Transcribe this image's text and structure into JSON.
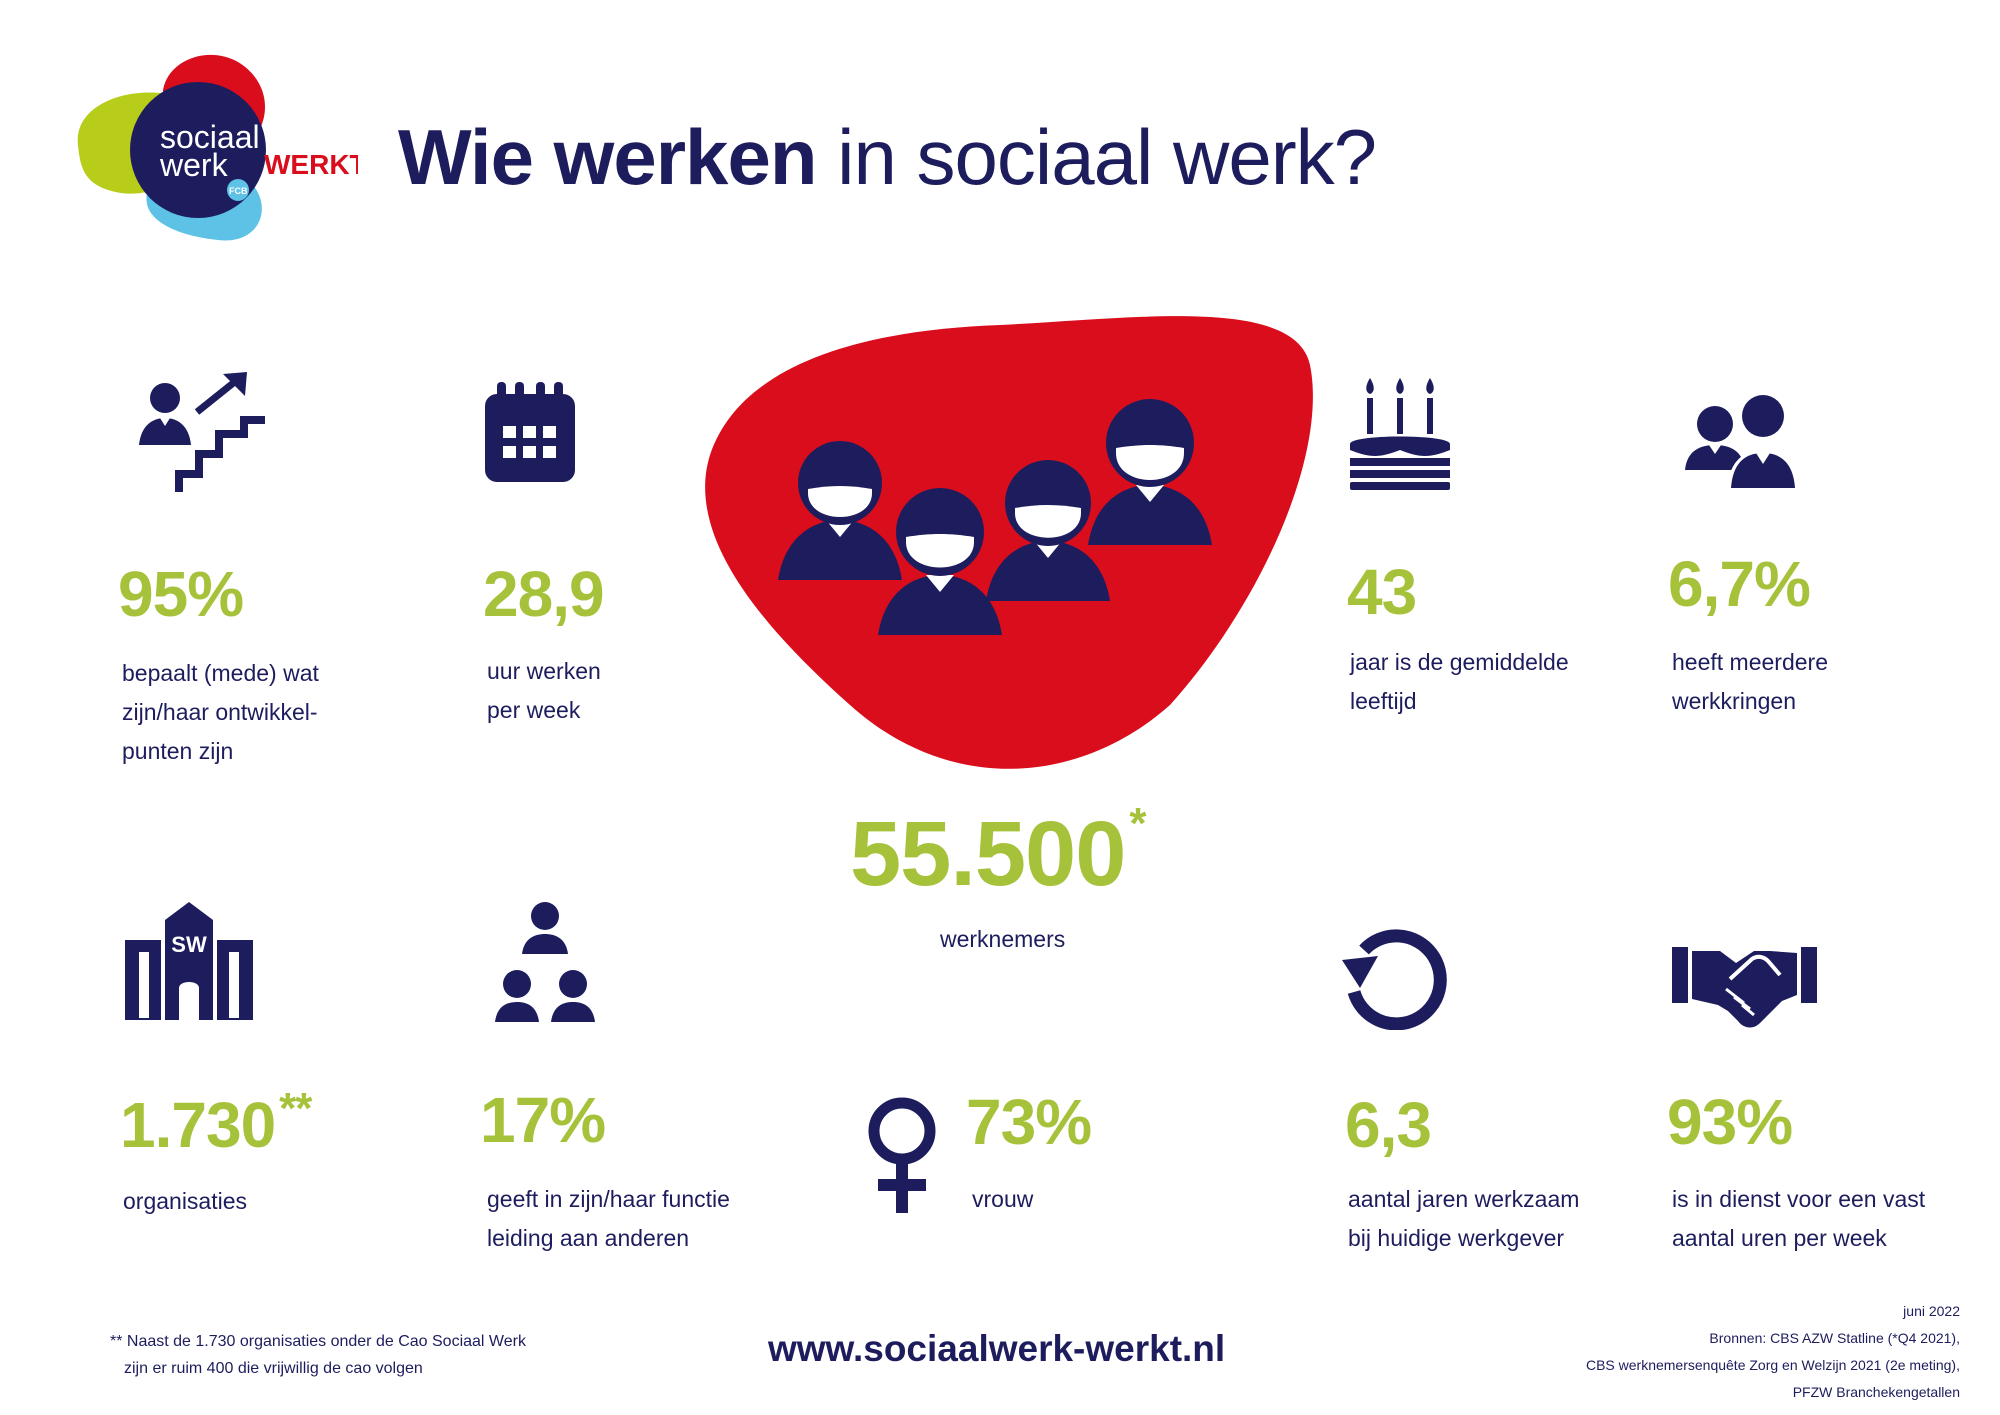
{
  "logo": {
    "line1": "sociaal",
    "line2": "werk",
    "word": "WERKT!",
    "badge": "FCB"
  },
  "title": {
    "bold": "Wie werken",
    "light": "in sociaal werk?"
  },
  "stats": {
    "development": {
      "value": "95%",
      "lines": [
        "bepaalt (mede) wat",
        "zijn/haar ontwikkel-",
        "punten zijn"
      ]
    },
    "hours": {
      "value": "28,9",
      "lines": [
        "uur werken",
        "per week"
      ]
    },
    "age": {
      "value": "43",
      "lines": [
        "jaar is de gemiddelde",
        "leeftijd"
      ]
    },
    "multiple_jobs": {
      "value": "6,7%",
      "lines": [
        "heeft meerdere",
        "werkkringen"
      ]
    },
    "employees": {
      "value": "55.500",
      "marker": "*",
      "label": "werknemers"
    },
    "organisations": {
      "value": "1.730",
      "marker": "**",
      "lines": [
        "organisaties"
      ]
    },
    "leadership": {
      "value": "17%",
      "lines": [
        "geeft in zijn/haar functie",
        "leiding aan anderen"
      ]
    },
    "female": {
      "value": "73%",
      "lines": [
        "vrouw"
      ]
    },
    "tenure": {
      "value": "6,3",
      "lines": [
        "aantal jaren werkzaam",
        "bij huidige werkgever"
      ]
    },
    "fixed_hours": {
      "value": "93%",
      "lines": [
        "is in dienst voor een vast",
        "aantal uren per week"
      ]
    }
  },
  "icons": {
    "development": "person-stairs-growth-icon",
    "hours": "calendar-icon",
    "employees": "group-of-four-people-icon",
    "age": "birthday-cake-icon",
    "multiple_jobs": "two-people-icon",
    "organisations": "sw-building-icon",
    "leadership": "hierarchy-people-icon",
    "female": "female-symbol-icon",
    "tenure": "circular-arrow-icon",
    "fixed_hours": "handshake-icon"
  },
  "footer": {
    "footnote": [
      "** Naast de 1.730 organisaties onder de Cao Sociaal Werk",
      "zijn er ruim 400 die vrijwillig de cao volgen"
    ],
    "url": "www.sociaalwerk-werkt.nl",
    "sources": [
      "juni 2022",
      "Bronnen: CBS AZW Statline (*Q4 2021),",
      "CBS werknemersenquête Zorg en Welzijn 2021 (2e meting),",
      "PFZW Branchekengetallen"
    ]
  },
  "colors": {
    "navy": "#1d1d5e",
    "green": "#a6c23a",
    "red": "#d90d1c",
    "lime": "#b8cc1a",
    "light_blue": "#5dc2e6",
    "white": "#ffffff"
  }
}
